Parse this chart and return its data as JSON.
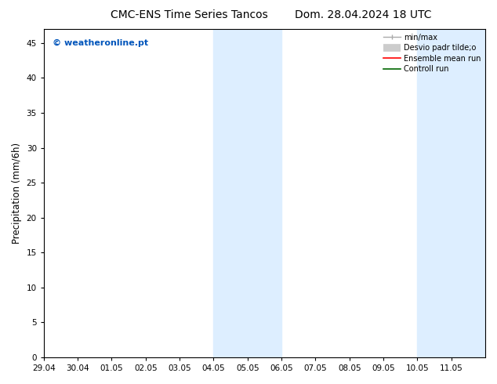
{
  "title": "CMC-ENS Time Series Tancos",
  "date_label": "Dom. 28.04.2024 18 UTC",
  "ylabel": "Precipitation (mm/6h)",
  "watermark": "© weatheronline.pt",
  "watermark_color": "#0055bb",
  "xlim_start": 0,
  "xlim_end": 13,
  "ylim": [
    0,
    47
  ],
  "yticks": [
    0,
    5,
    10,
    15,
    20,
    25,
    30,
    35,
    40,
    45
  ],
  "xtick_labels": [
    "29.04",
    "30.04",
    "01.05",
    "02.05",
    "03.05",
    "04.05",
    "05.05",
    "06.05",
    "07.05",
    "08.05",
    "09.05",
    "10.05",
    "11.05"
  ],
  "shaded_regions": [
    {
      "xmin": 5,
      "xmax": 7,
      "color": "#ddeeff"
    },
    {
      "xmin": 11,
      "xmax": 13,
      "color": "#ddeeff"
    }
  ],
  "legend_entries": [
    {
      "label": "min/max",
      "color": "#aaaaaa",
      "lw": 1.5
    },
    {
      "label": "Desvio padr tilde;o",
      "color": "#cccccc",
      "lw": 6
    },
    {
      "label": "Ensemble mean run",
      "color": "#ff0000",
      "lw": 1.5
    },
    {
      "label": "Controll run",
      "color": "#006600",
      "lw": 1.5
    }
  ],
  "bg_color": "#ffffff",
  "plot_bg_color": "#ffffff",
  "axes_color": "#000000",
  "title_fontsize": 10,
  "tick_fontsize": 7.5,
  "ylabel_fontsize": 8.5,
  "legend_fontsize": 7,
  "watermark_fontsize": 8
}
